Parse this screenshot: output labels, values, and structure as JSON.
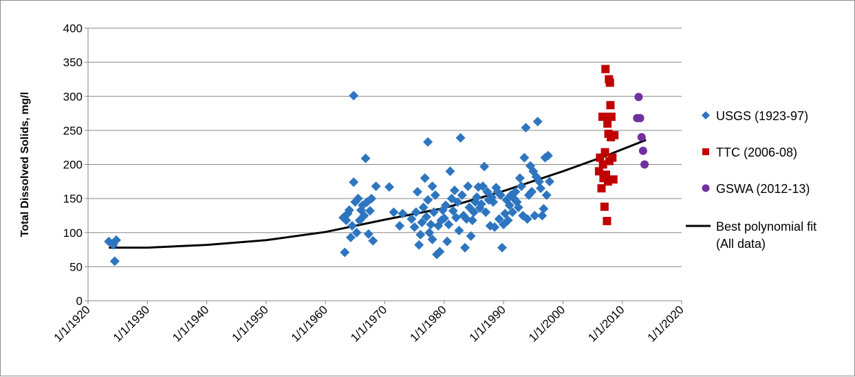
{
  "chart_data": {
    "type": "scatter",
    "title": "",
    "xlabel": "",
    "ylabel": "Total Dissolved Solids, mg/l",
    "x_axis_type": "date",
    "xlim": [
      "1/1/1920",
      "1/1/2020"
    ],
    "x_ticks": [
      "1/1/1920",
      "1/1/1930",
      "1/1/1940",
      "1/1/1950",
      "1/1/1960",
      "1/1/1970",
      "1/1/1980",
      "1/1/1990",
      "1/1/2000",
      "1/1/2010",
      "1/1/2020"
    ],
    "ylim": [
      0,
      400
    ],
    "y_ticks": [
      0,
      50,
      100,
      150,
      200,
      250,
      300,
      350,
      400
    ],
    "grid": "horizontal",
    "legend_position": "right",
    "series": [
      {
        "name": "USGS (1923-97)",
        "marker": "diamond",
        "color": "#2E75C0",
        "points": [
          [
            "1923-07-01",
            87
          ],
          [
            "1924-04-01",
            82
          ],
          [
            "1924-07-01",
            58
          ],
          [
            "1924-10-01",
            89
          ],
          [
            "1963-01-01",
            122
          ],
          [
            "1963-04-01",
            71
          ],
          [
            "1963-07-01",
            118
          ],
          [
            "1963-10-01",
            128
          ],
          [
            "1964-01-01",
            133
          ],
          [
            "1964-04-01",
            93
          ],
          [
            "1964-07-01",
            110
          ],
          [
            "1964-10-01",
            174
          ],
          [
            "1964-10-01",
            301
          ],
          [
            "1965-01-01",
            145
          ],
          [
            "1965-04-01",
            100
          ],
          [
            "1965-07-01",
            150
          ],
          [
            "1965-10-01",
            118
          ],
          [
            "1966-01-01",
            133
          ],
          [
            "1966-04-01",
            140
          ],
          [
            "1966-07-01",
            125
          ],
          [
            "1966-10-01",
            209
          ],
          [
            "1967-01-01",
            145
          ],
          [
            "1967-04-01",
            98
          ],
          [
            "1967-07-01",
            132
          ],
          [
            "1967-10-01",
            150
          ],
          [
            "1968-01-01",
            88
          ],
          [
            "1968-07-01",
            168
          ],
          [
            "1970-10-01",
            167
          ],
          [
            "1971-07-01",
            130
          ],
          [
            "1972-07-01",
            110
          ],
          [
            "1973-01-01",
            128
          ],
          [
            "1974-07-01",
            120
          ],
          [
            "1975-01-01",
            108
          ],
          [
            "1975-04-01",
            130
          ],
          [
            "1975-07-01",
            160
          ],
          [
            "1975-10-01",
            82
          ],
          [
            "1976-01-01",
            97
          ],
          [
            "1976-04-01",
            115
          ],
          [
            "1976-07-01",
            137
          ],
          [
            "1976-10-01",
            180
          ],
          [
            "1977-01-01",
            123
          ],
          [
            "1977-04-01",
            148
          ],
          [
            "1977-04-01",
            233
          ],
          [
            "1977-07-01",
            100
          ],
          [
            "1977-10-01",
            112
          ],
          [
            "1978-01-01",
            168
          ],
          [
            "1978-01-01",
            90
          ],
          [
            "1978-04-01",
            130
          ],
          [
            "1978-07-01",
            155
          ],
          [
            "1978-10-01",
            68
          ],
          [
            "1979-01-01",
            110
          ],
          [
            "1979-04-01",
            72
          ],
          [
            "1979-07-01",
            118
          ],
          [
            "1979-10-01",
            133
          ],
          [
            "1980-01-01",
            121
          ],
          [
            "1980-04-01",
            140
          ],
          [
            "1980-07-01",
            87
          ],
          [
            "1980-10-01",
            112
          ],
          [
            "1981-01-01",
            190
          ],
          [
            "1981-04-01",
            150
          ],
          [
            "1981-07-01",
            132
          ],
          [
            "1981-10-01",
            162
          ],
          [
            "1982-01-01",
            122
          ],
          [
            "1982-04-01",
            145
          ],
          [
            "1982-07-01",
            103
          ],
          [
            "1982-10-01",
            239
          ],
          [
            "1983-01-01",
            155
          ],
          [
            "1983-04-01",
            125
          ],
          [
            "1983-07-01",
            78
          ],
          [
            "1983-10-01",
            120
          ],
          [
            "1984-01-01",
            168
          ],
          [
            "1984-04-01",
            137
          ],
          [
            "1984-07-01",
            95
          ],
          [
            "1984-10-01",
            118
          ],
          [
            "1985-01-01",
            130
          ],
          [
            "1985-04-01",
            145
          ],
          [
            "1985-07-01",
            152
          ],
          [
            "1985-10-01",
            167
          ],
          [
            "1986-01-01",
            136
          ],
          [
            "1986-04-01",
            142
          ],
          [
            "1986-07-01",
            168
          ],
          [
            "1986-10-01",
            197
          ],
          [
            "1987-01-01",
            130
          ],
          [
            "1987-04-01",
            160
          ],
          [
            "1987-07-01",
            148
          ],
          [
            "1987-10-01",
            110
          ],
          [
            "1988-01-01",
            152
          ],
          [
            "1988-04-01",
            145
          ],
          [
            "1988-07-01",
            108
          ],
          [
            "1988-10-01",
            166
          ],
          [
            "1989-01-01",
            160
          ],
          [
            "1989-04-01",
            120
          ],
          [
            "1989-07-01",
            155
          ],
          [
            "1989-10-01",
            78
          ],
          [
            "1990-01-01",
            112
          ],
          [
            "1990-04-01",
            128
          ],
          [
            "1990-07-01",
            148
          ],
          [
            "1990-10-01",
            118
          ],
          [
            "1991-01-01",
            140
          ],
          [
            "1991-04-01",
            155
          ],
          [
            "1991-07-01",
            130
          ],
          [
            "1991-10-01",
            150
          ],
          [
            "1992-01-01",
            160
          ],
          [
            "1992-04-01",
            145
          ],
          [
            "1992-07-01",
            137
          ],
          [
            "1992-10-01",
            180
          ],
          [
            "1993-01-01",
            168
          ],
          [
            "1993-04-01",
            125
          ],
          [
            "1993-07-01",
            210
          ],
          [
            "1993-10-01",
            254
          ],
          [
            "1994-01-01",
            120
          ],
          [
            "1994-04-01",
            155
          ],
          [
            "1994-07-01",
            198
          ],
          [
            "1994-10-01",
            160
          ],
          [
            "1995-01-01",
            190
          ],
          [
            "1995-04-01",
            125
          ],
          [
            "1995-07-01",
            182
          ],
          [
            "1995-10-01",
            263
          ],
          [
            "1996-01-01",
            175
          ],
          [
            "1996-04-01",
            165
          ],
          [
            "1996-07-01",
            125
          ],
          [
            "1996-10-01",
            135
          ],
          [
            "1997-01-01",
            210
          ],
          [
            "1997-04-01",
            155
          ],
          [
            "1997-07-01",
            213
          ],
          [
            "1997-10-01",
            175
          ]
        ]
      },
      {
        "name": "TTC (2006-08)",
        "marker": "square",
        "color": "#C00000",
        "points": [
          [
            "2006-02-01",
            190
          ],
          [
            "2006-04-01",
            210
          ],
          [
            "2006-07-01",
            165
          ],
          [
            "2006-09-01",
            270
          ],
          [
            "2006-10-01",
            200
          ],
          [
            "2006-11-01",
            180
          ],
          [
            "2007-01-01",
            138
          ],
          [
            "2007-02-01",
            218
          ],
          [
            "2007-03-01",
            340
          ],
          [
            "2007-04-01",
            185
          ],
          [
            "2007-05-01",
            270
          ],
          [
            "2007-06-01",
            117
          ],
          [
            "2007-07-01",
            260
          ],
          [
            "2007-08-01",
            175
          ],
          [
            "2007-09-01",
            245
          ],
          [
            "2007-10-01",
            325
          ],
          [
            "2007-11-01",
            205
          ],
          [
            "2007-12-01",
            320
          ],
          [
            "2008-01-01",
            287
          ],
          [
            "2008-02-01",
            240
          ],
          [
            "2008-03-01",
            270
          ],
          [
            "2008-05-01",
            210
          ],
          [
            "2008-07-01",
            178
          ],
          [
            "2008-09-01",
            243
          ]
        ]
      },
      {
        "name": "GSWA (2012-13)",
        "marker": "circle",
        "color": "#7030A0",
        "points": [
          [
            "2012-07-01",
            268
          ],
          [
            "2012-10-01",
            299
          ],
          [
            "2013-01-01",
            268
          ],
          [
            "2013-04-01",
            240
          ],
          [
            "2013-07-01",
            220
          ],
          [
            "2013-10-01",
            200
          ]
        ]
      },
      {
        "name": "Best polynomial fit\n(All data)",
        "marker": "line",
        "color": "#000000",
        "points": [
          [
            "1923-07-01",
            78
          ],
          [
            "1930-01-01",
            78
          ],
          [
            "1940-01-01",
            82
          ],
          [
            "1950-01-01",
            89
          ],
          [
            "1960-01-01",
            101
          ],
          [
            "1970-01-01",
            119
          ],
          [
            "1980-01-01",
            136
          ],
          [
            "1990-01-01",
            161
          ],
          [
            "2000-01-01",
            190
          ],
          [
            "2007-01-01",
            212
          ],
          [
            "2014-01-01",
            236
          ]
        ]
      }
    ]
  }
}
